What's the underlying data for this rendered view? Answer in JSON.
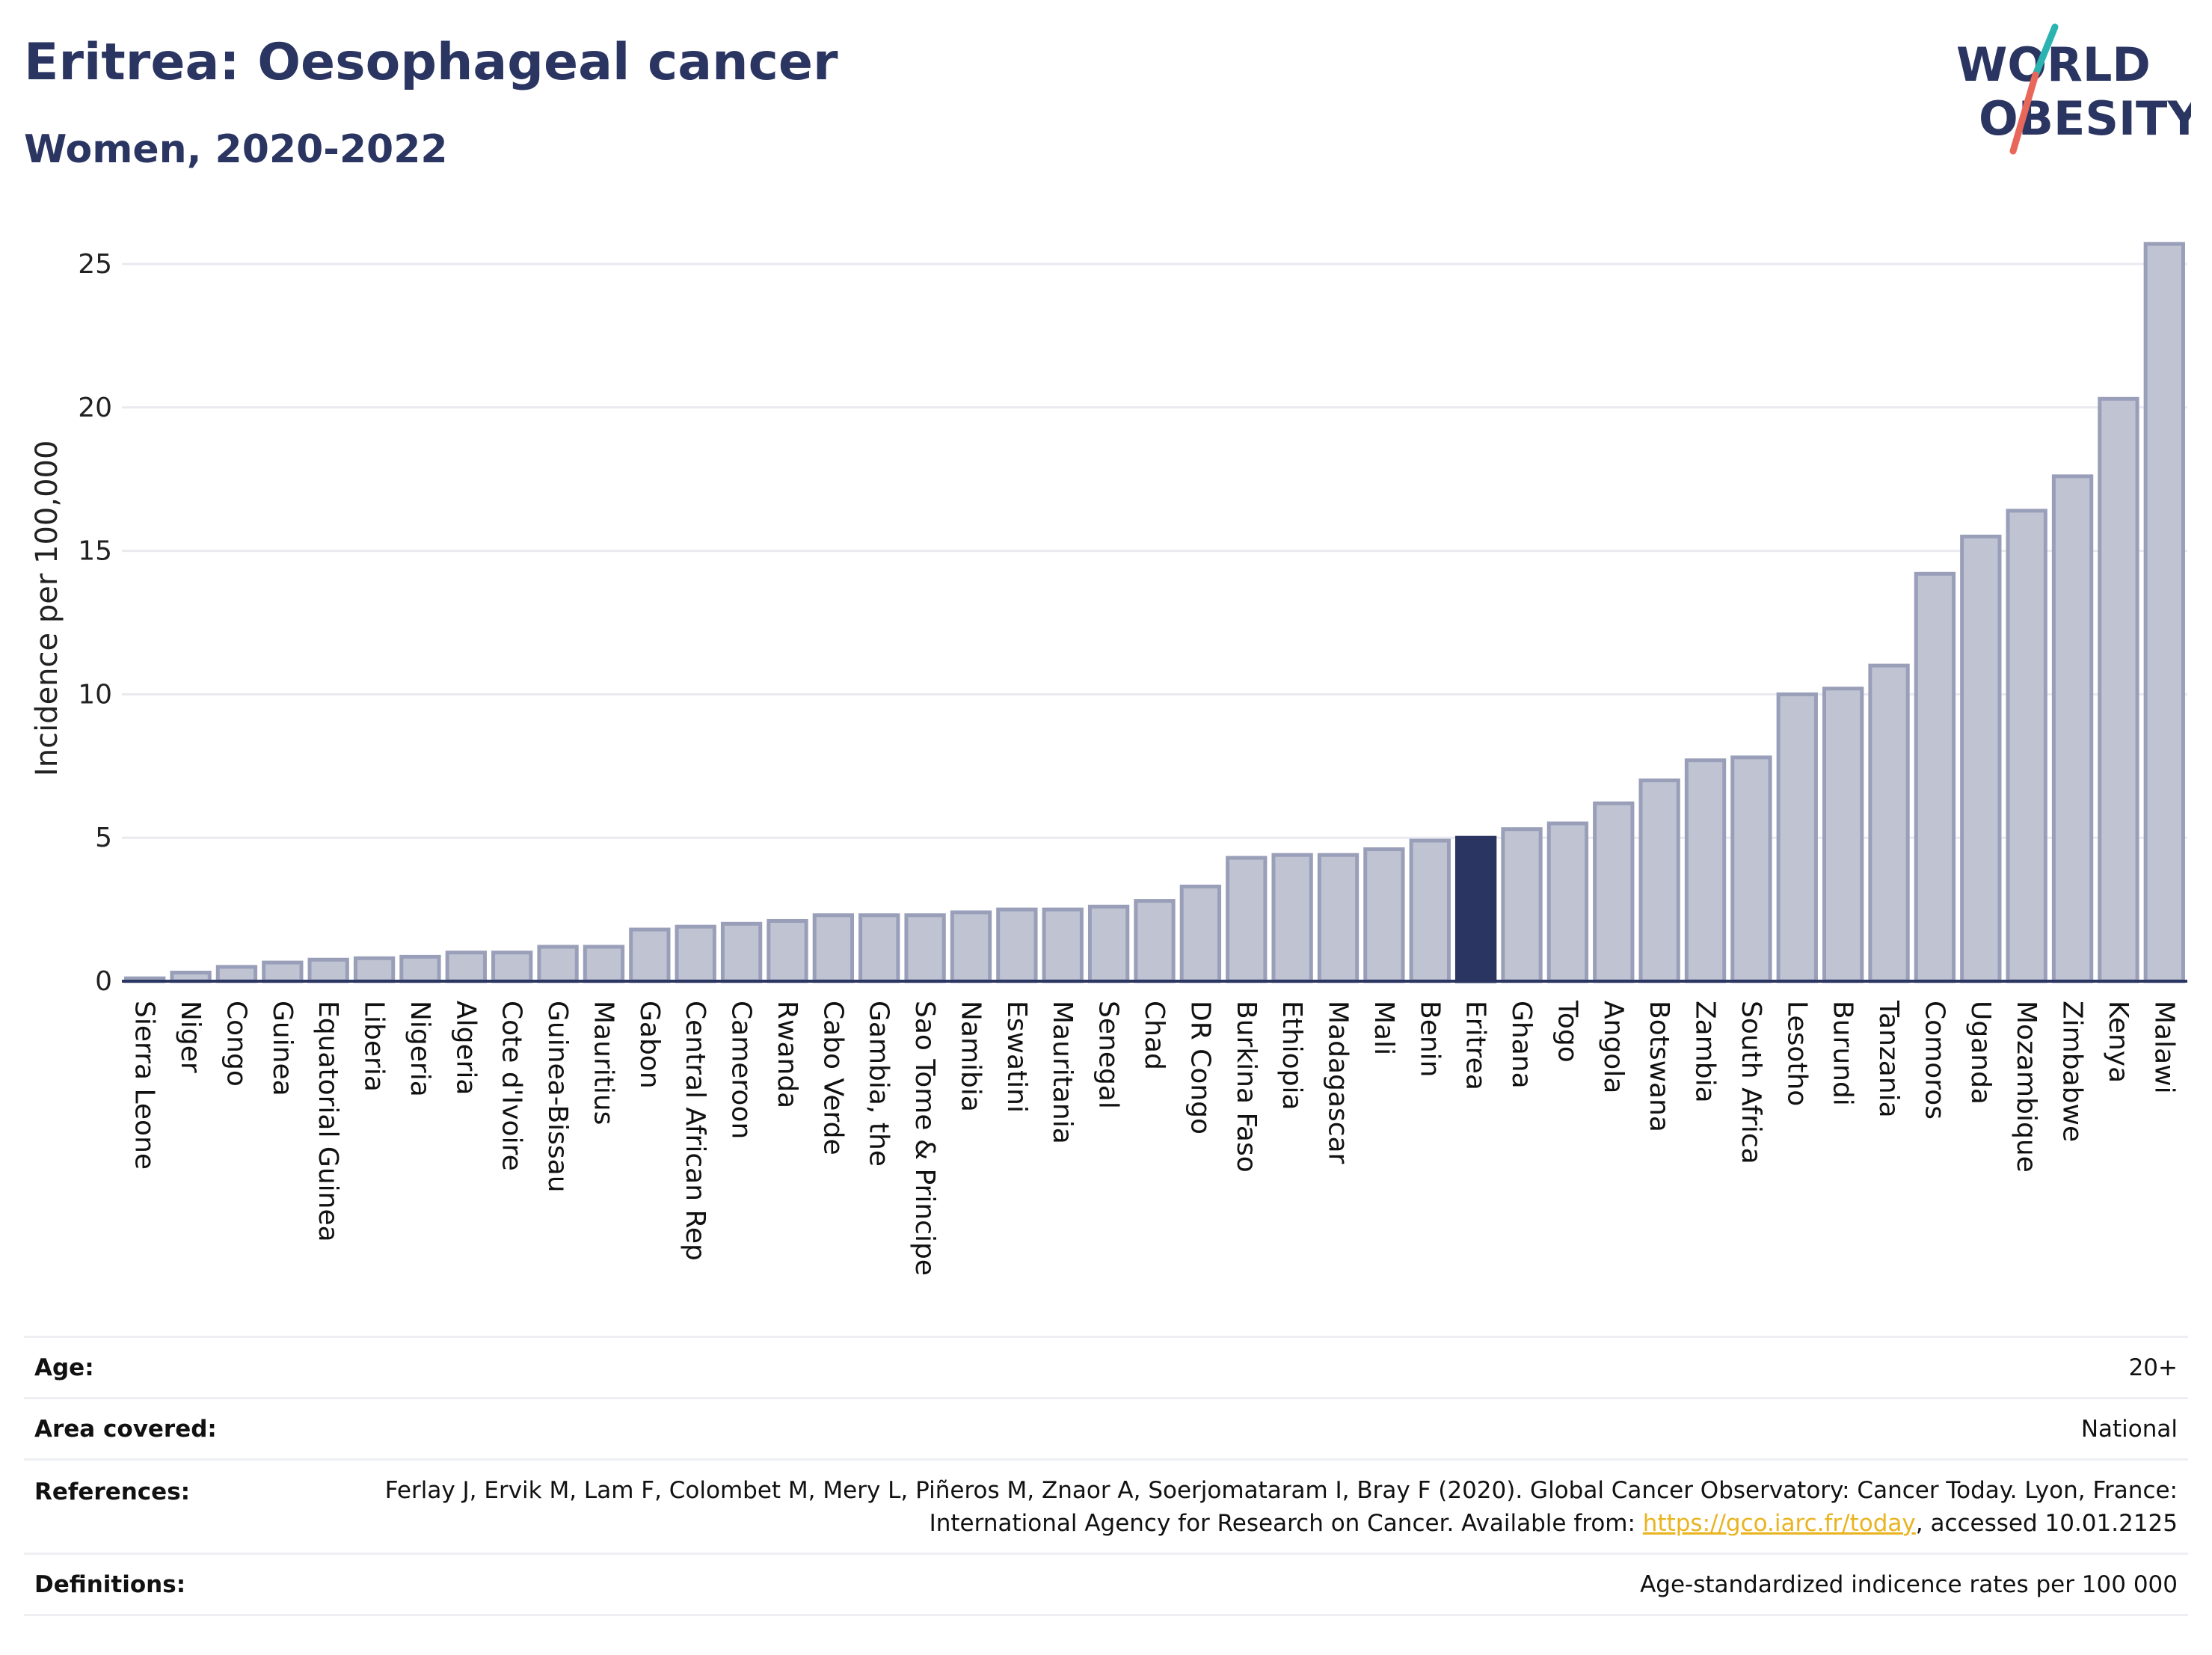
{
  "title": "Eritrea: Oesophageal cancer",
  "subtitle": "Women, 2020-2022",
  "logo": {
    "line1": "WORLD",
    "line2": "OBESITY"
  },
  "colors": {
    "bar": "#bfc3d2",
    "bar_stroke": "#9a9fb9",
    "highlight": "#2b3561",
    "grid": "#e9eaf0",
    "text": "#2b3561"
  },
  "chart_data": {
    "type": "bar",
    "ylabel": "Incidence per 100,000",
    "ylim": [
      0,
      26
    ],
    "yticks": [
      0,
      5,
      10,
      15,
      20,
      25
    ],
    "highlight": "Eritrea",
    "categories": [
      "Sierra Leone",
      "Niger",
      "Congo",
      "Guinea",
      "Equatorial Guinea",
      "Liberia",
      "Nigeria",
      "Algeria",
      "Cote d'Ivoire",
      "Guinea-Bissau",
      "Mauritius",
      "Gabon",
      "Central African Rep",
      "Cameroon",
      "Rwanda",
      "Cabo Verde",
      "Gambia, the",
      "Sao Tome & Principe",
      "Namibia",
      "Eswatini",
      "Mauritania",
      "Senegal",
      "Chad",
      "DR Congo",
      "Burkina Faso",
      "Ethiopia",
      "Madagascar",
      "Mali",
      "Benin",
      "Eritrea",
      "Ghana",
      "Togo",
      "Angola",
      "Botswana",
      "Zambia",
      "South Africa",
      "Lesotho",
      "Burundi",
      "Tanzania",
      "Comoros",
      "Uganda",
      "Mozambique",
      "Zimbabwe",
      "Kenya",
      "Malawi"
    ],
    "values": [
      0.1,
      0.3,
      0.5,
      0.65,
      0.75,
      0.8,
      0.85,
      1.0,
      1.0,
      1.2,
      1.2,
      1.8,
      1.9,
      2.0,
      2.1,
      2.3,
      2.3,
      2.3,
      2.4,
      2.5,
      2.5,
      2.6,
      2.8,
      3.3,
      4.3,
      4.4,
      4.4,
      4.6,
      4.9,
      5.0,
      5.3,
      5.5,
      6.2,
      7.0,
      7.7,
      7.8,
      10.0,
      10.2,
      11.0,
      14.2,
      15.5,
      16.4,
      17.6,
      20.3,
      25.7
    ]
  },
  "info": [
    {
      "label": "Age:",
      "value": "20+"
    },
    {
      "label": "Area covered:",
      "value": "National"
    },
    {
      "label": "References:",
      "value_pre": "Ferlay J, Ervik M, Lam F, Colombet M, Mery L, Piñeros M, Znaor A, Soerjomataram I, Bray F (2020). Global Cancer Observatory: Cancer Today. Lyon, France: International Agency for Research on Cancer. Available from: ",
      "link": "https://gco.iarc.fr/today",
      "value_post": ", accessed 10.01.2125"
    },
    {
      "label": "Definitions:",
      "value": "Age-standardized indicence rates per 100 000"
    }
  ]
}
